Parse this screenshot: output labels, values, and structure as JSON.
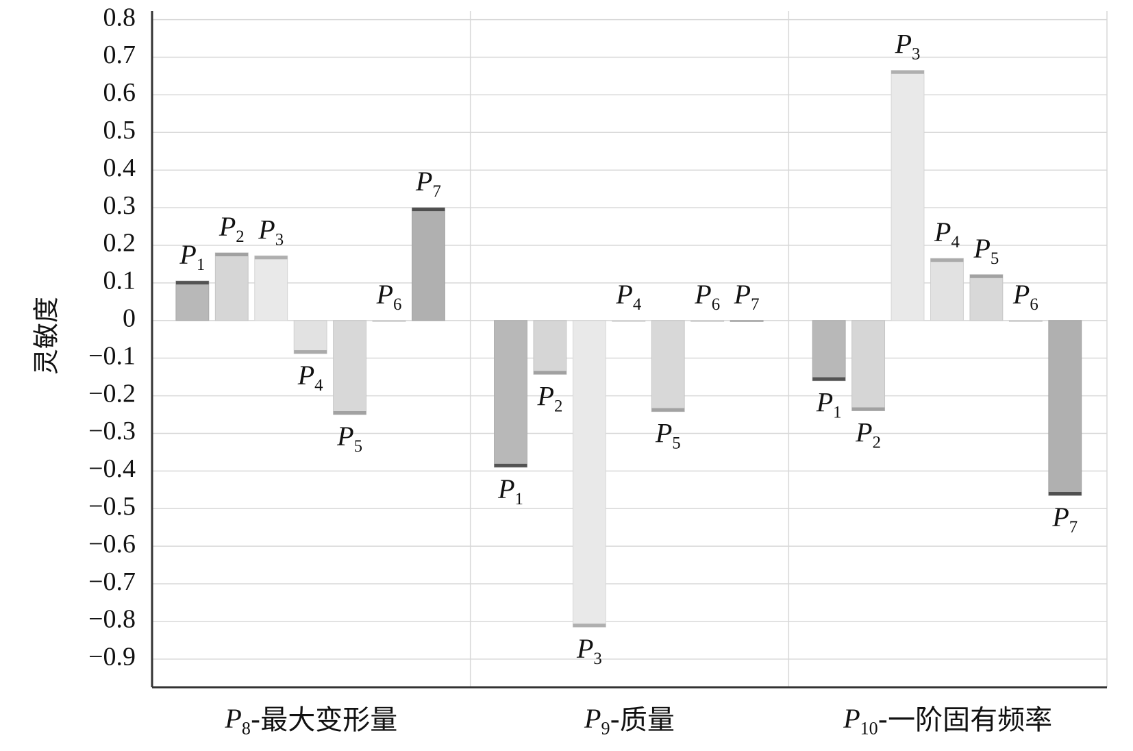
{
  "chart_data": {
    "type": "bar",
    "y_label": "灵敏度",
    "categories": [
      "P8-最大变形量",
      "P9-质量",
      "P10-一阶固有频率"
    ],
    "series": [
      {
        "name": "P1",
        "color": "#b8b8b8",
        "values": [
          0.105,
          -0.39,
          -0.16
        ]
      },
      {
        "name": "P2",
        "color": "#d6d6d6",
        "values": [
          0.18,
          -0.143,
          -0.24
        ]
      },
      {
        "name": "P3",
        "color": "#e9e9e9",
        "values": [
          0.172,
          -0.815,
          0.665
        ]
      },
      {
        "name": "P4",
        "color": "#e2e2e2",
        "values": [
          -0.088,
          0,
          0.165
        ]
      },
      {
        "name": "P5",
        "color": "#d8d8d8",
        "values": [
          -0.25,
          -0.242,
          0.122
        ]
      },
      {
        "name": "P6",
        "color": "#dddddd",
        "values": [
          0,
          0,
          0
        ]
      },
      {
        "name": "P7",
        "color": "#b0b0b0",
        "values": [
          0.3,
          0,
          -0.465
        ]
      }
    ],
    "ylim": [
      -0.975,
      0.823
    ],
    "yticks": [
      {
        "value": -0.9,
        "label": "−0.9"
      },
      {
        "value": -0.8,
        "label": "−0.8"
      },
      {
        "value": -0.7,
        "label": "−0.7"
      },
      {
        "value": -0.6,
        "label": "−0.6"
      },
      {
        "value": -0.5,
        "label": "−0.5"
      },
      {
        "value": -0.4,
        "label": "−0.4"
      },
      {
        "value": -0.3,
        "label": "−0.3"
      },
      {
        "value": -0.2,
        "label": "−0.2"
      },
      {
        "value": -0.1,
        "label": "−0.1"
      },
      0,
      0.1,
      0.2,
      0.3,
      0.4,
      0.5,
      0.6,
      0.7,
      0.8
    ],
    "grid": true
  }
}
